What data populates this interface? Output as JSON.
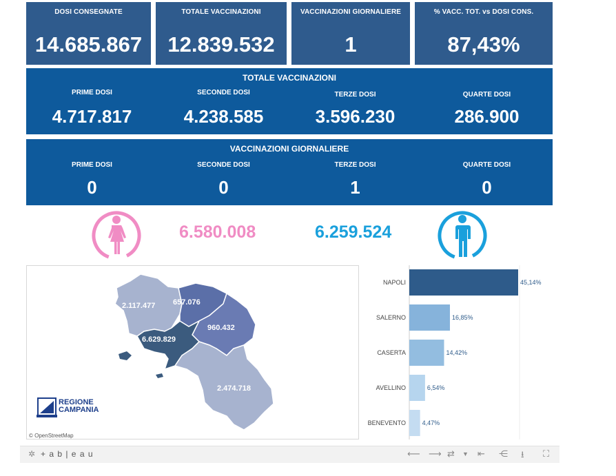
{
  "kpi": [
    {
      "label": "DOSI  CONSEGNATE",
      "value": "14.685.867"
    },
    {
      "label": "TOTALE VACCINAZIONI",
      "value": "12.839.532"
    },
    {
      "label": "VACCINAZIONI GIORNALIERE",
      "value": "1"
    },
    {
      "label": "% VACC. TOT. vs DOSI CONS.",
      "value": "87,43%"
    }
  ],
  "totale": {
    "title": "TOTALE VACCINAZIONI",
    "items": [
      {
        "label": "PRIME DOSI",
        "value": "4.717.817"
      },
      {
        "label": "SECONDE DOSI",
        "value": "4.238.585"
      },
      {
        "label": "TERZE DOSI",
        "value": "3.596.230"
      },
      {
        "label": "QUARTE DOSI",
        "value": "286.900"
      }
    ]
  },
  "giornaliere": {
    "title": "VACCINAZIONI GIORNALIERE",
    "items": [
      {
        "label": "PRIME DOSI",
        "value": "0"
      },
      {
        "label": "SECONDE DOSI",
        "value": "0"
      },
      {
        "label": "TERZE DOSI",
        "value": "1"
      },
      {
        "label": "QUARTE DOSI",
        "value": "0"
      }
    ]
  },
  "gender": {
    "female": "6.580.008",
    "male": "6.259.524",
    "female_color": "#f08cc4",
    "male_color": "#1aa0dc",
    "female_icon": "female-icon",
    "male_icon": "male-icon"
  },
  "map": {
    "labels": {
      "caserta": "2.117.477",
      "benevento": "657.076",
      "avellino": "960.432",
      "napoli": "6.629.829",
      "salerno": "2.474.718"
    },
    "logo_line1": "REGIONE",
    "logo_line2": "CAMPANIA",
    "attribution": "© OpenStreetMap"
  },
  "chart_data": {
    "type": "bar",
    "orientation": "horizontal",
    "categories": [
      "NAPOLI",
      "SALERNO",
      "CASERTA",
      "AVELLINO",
      "BENEVENTO"
    ],
    "values": [
      45.14,
      16.85,
      14.42,
      6.54,
      4.47
    ],
    "labels": [
      "45,14%",
      "16,85%",
      "14,42%",
      "6,54%",
      "4,47%"
    ],
    "colors": [
      "#2e5b8a",
      "#86b3db",
      "#93bde0",
      "#b6d5ee",
      "#c4dcf1"
    ]
  },
  "footer": {
    "brand": "+ a b | e a u"
  }
}
